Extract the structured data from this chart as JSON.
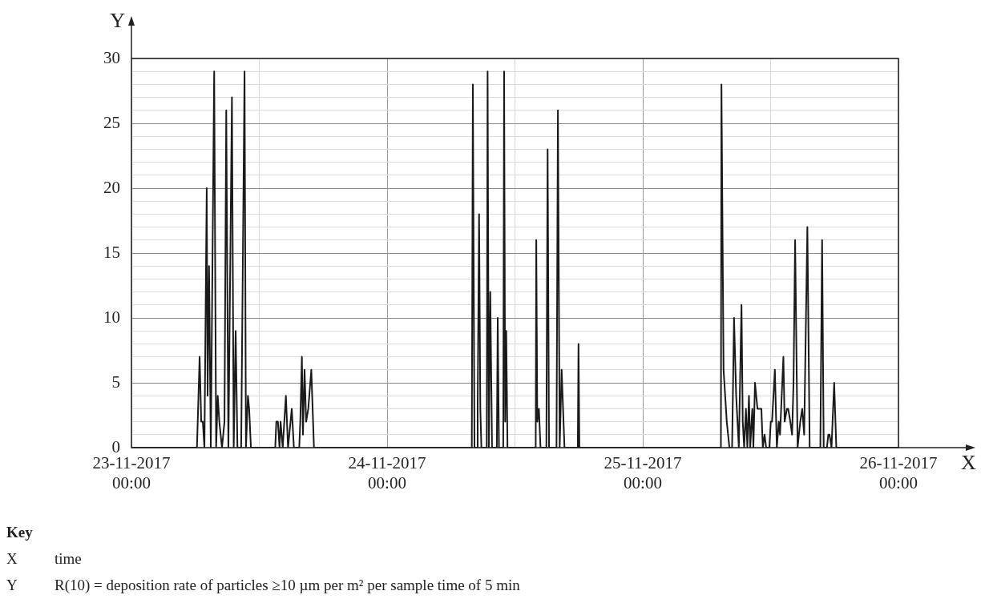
{
  "chart_data": {
    "type": "line",
    "xlabel": "X",
    "ylabel": "Y",
    "xlim": [
      "2017-11-23T00:00",
      "2017-11-26T00:00"
    ],
    "xticks": [
      {
        "value": "2017-11-23T00:00",
        "label": "23-11-2017\n00:00"
      },
      {
        "value": "2017-11-23T12:00",
        "label": null
      },
      {
        "value": "2017-11-24T00:00",
        "label": "24-11-2017\n00:00"
      },
      {
        "value": "2017-11-24T12:00",
        "label": null
      },
      {
        "value": "2017-11-25T00:00",
        "label": "25-11-2017\n00:00"
      },
      {
        "value": "2017-11-25T12:00",
        "label": null
      },
      {
        "value": "2017-11-26T00:00",
        "label": "26-11-2017\n00:00"
      }
    ],
    "ylim": [
      0,
      30
    ],
    "yticks": [
      0,
      {
        "value": 1,
        "label": null
      },
      {
        "value": 2,
        "label": null
      },
      {
        "value": 3,
        "label": null
      },
      {
        "value": 4,
        "label": null
      },
      5,
      {
        "value": 6,
        "label": null
      },
      {
        "value": 7,
        "label": null
      },
      {
        "value": 8,
        "label": null
      },
      {
        "value": 9,
        "label": null
      },
      10,
      {
        "value": 11,
        "label": null
      },
      {
        "value": 12,
        "label": null
      },
      {
        "value": 13,
        "label": null
      },
      {
        "value": 14,
        "label": null
      },
      15,
      {
        "value": 16,
        "label": null
      },
      {
        "value": 17,
        "label": null
      },
      {
        "value": 18,
        "label": null
      },
      {
        "value": 19,
        "label": null
      },
      20,
      {
        "value": 21,
        "label": null
      },
      {
        "value": 22,
        "label": null
      },
      {
        "value": 23,
        "label": null
      },
      {
        "value": 24,
        "label": null
      },
      25,
      {
        "value": 26,
        "label": null
      },
      {
        "value": 27,
        "label": null
      },
      {
        "value": 28,
        "label": null
      },
      {
        "value": 29,
        "label": null
      },
      30
    ],
    "grid": true,
    "marker": "none",
    "line_style": "solid",
    "x": [
      "2017-11-23T00:00",
      "2017-11-23T06:09",
      "2017-11-23T06:24",
      "2017-11-23T06:33",
      "2017-11-23T06:42",
      "2017-11-23T06:51",
      "2017-11-23T07:04",
      "2017-11-23T07:09",
      "2017-11-23T07:17",
      "2017-11-23T07:27",
      "2017-11-23T07:46",
      "2017-11-23T07:57",
      "2017-11-23T08:06",
      "2017-11-23T08:15",
      "2017-11-23T08:30",
      "2017-11-23T08:44",
      "2017-11-23T08:54",
      "2017-11-23T09:06",
      "2017-11-23T09:26",
      "2017-11-23T09:36",
      "2017-11-23T09:47",
      "2017-11-23T09:57",
      "2017-11-23T10:18",
      "2017-11-23T10:37",
      "2017-11-23T10:45",
      "2017-11-23T10:56",
      "2017-11-23T11:03",
      "2017-11-23T11:13",
      "2017-11-23T13:30",
      "2017-11-23T13:36",
      "2017-11-23T13:45",
      "2017-11-23T13:54",
      "2017-11-23T14:00",
      "2017-11-23T14:12",
      "2017-11-23T14:30",
      "2017-11-23T14:42",
      "2017-11-23T15:03",
      "2017-11-23T15:15",
      "2017-11-23T15:45",
      "2017-11-23T15:51",
      "2017-11-23T16:00",
      "2017-11-23T16:06",
      "2017-11-23T16:15",
      "2017-11-23T16:24",
      "2017-11-23T16:36",
      "2017-11-23T16:53",
      "2017-11-23T17:08",
      "2017-11-24T07:57",
      "2017-11-24T08:03",
      "2017-11-24T08:12",
      "2017-11-24T08:27",
      "2017-11-24T08:30",
      "2017-11-24T08:38",
      "2017-11-24T08:45",
      "2017-11-24T08:51",
      "2017-11-24T09:21",
      "2017-11-24T09:26",
      "2017-11-24T09:33",
      "2017-11-24T09:41",
      "2017-11-24T09:51",
      "2017-11-24T10:18",
      "2017-11-24T10:23",
      "2017-11-24T10:30",
      "2017-11-24T10:54",
      "2017-11-24T10:59",
      "2017-11-24T11:05",
      "2017-11-24T11:11",
      "2017-11-24T11:18",
      "2017-11-24T13:57",
      "2017-11-24T14:00",
      "2017-11-24T14:06",
      "2017-11-24T14:15",
      "2017-11-24T14:24",
      "2017-11-24T14:57",
      "2017-11-24T15:04",
      "2017-11-24T15:12",
      "2017-11-24T15:54",
      "2017-11-24T16:02",
      "2017-11-24T16:12",
      "2017-11-24T16:23",
      "2017-11-24T16:39",
      "2017-11-24T17:54",
      "2017-11-24T17:58",
      "2017-11-24T18:03",
      "2017-11-25T07:20",
      "2017-11-25T07:23",
      "2017-11-25T07:35",
      "2017-11-25T07:53",
      "2017-11-25T08:08",
      "2017-11-25T08:23",
      "2017-11-25T08:34",
      "2017-11-25T08:46",
      "2017-11-25T09:01",
      "2017-11-25T09:16",
      "2017-11-25T09:23",
      "2017-11-25T09:31",
      "2017-11-25T09:41",
      "2017-11-25T09:49",
      "2017-11-25T09:58",
      "2017-11-25T10:05",
      "2017-11-25T10:17",
      "2017-11-25T10:23",
      "2017-11-25T10:32",
      "2017-11-25T10:46",
      "2017-11-25T11:01",
      "2017-11-25T11:08",
      "2017-11-25T11:16",
      "2017-11-25T11:26",
      "2017-11-25T11:35",
      "2017-11-25T11:53",
      "2017-11-25T12:01",
      "2017-11-25T12:08",
      "2017-11-25T12:24",
      "2017-11-25T12:35",
      "2017-11-25T12:46",
      "2017-11-25T12:53",
      "2017-11-25T13:12",
      "2017-11-25T13:19",
      "2017-11-25T13:32",
      "2017-11-25T13:39",
      "2017-11-25T13:51",
      "2017-11-25T14:01",
      "2017-11-25T14:09",
      "2017-11-25T14:18",
      "2017-11-25T14:32",
      "2017-11-25T14:47",
      "2017-11-25T14:58",
      "2017-11-25T15:09",
      "2017-11-25T15:27",
      "2017-11-25T15:40",
      "2017-11-25T16:40",
      "2017-11-25T16:50",
      "2017-11-25T16:59",
      "2017-11-25T17:17",
      "2017-11-25T17:25",
      "2017-11-25T17:32",
      "2017-11-25T17:43",
      "2017-11-25T17:58",
      "2017-11-25T18:10",
      "2017-11-26T00:00"
    ],
    "series": [
      {
        "color": "#1a1a1a",
        "values": [
          0,
          0,
          7,
          2,
          2,
          0,
          20,
          4,
          14,
          0,
          29,
          0,
          4,
          2,
          0,
          2,
          26,
          0,
          27,
          0,
          9,
          0,
          0,
          29,
          0,
          4,
          3,
          0,
          0,
          2,
          2,
          0,
          2,
          0,
          4,
          0,
          3,
          0,
          0,
          2,
          7,
          1,
          6,
          2,
          3,
          6,
          0,
          0,
          28,
          0,
          0,
          3,
          18,
          3,
          0,
          0,
          29,
          0,
          12,
          0,
          0,
          10,
          0,
          0,
          29,
          2,
          9,
          0,
          0,
          16,
          2,
          3,
          0,
          0,
          23,
          0,
          0,
          26,
          0,
          6,
          0,
          0,
          8,
          0,
          0,
          28,
          6,
          2,
          0,
          0,
          10,
          4,
          0,
          11,
          2,
          0,
          3,
          0,
          4,
          0,
          3,
          0,
          5,
          3,
          3,
          3,
          0,
          1,
          0,
          0,
          2,
          2,
          6,
          0,
          2,
          1,
          7,
          2,
          3,
          3,
          2,
          1,
          5,
          16,
          0,
          2,
          3,
          1,
          17,
          0,
          0,
          16,
          0,
          0,
          1,
          1,
          0,
          5,
          0,
          0
        ]
      }
    ],
    "annotations": [
      "Key",
      "X\ttime",
      "Y\tR(10) = deposition rate of particles ≥10 µm per m² per sample time of 5 min"
    ]
  }
}
